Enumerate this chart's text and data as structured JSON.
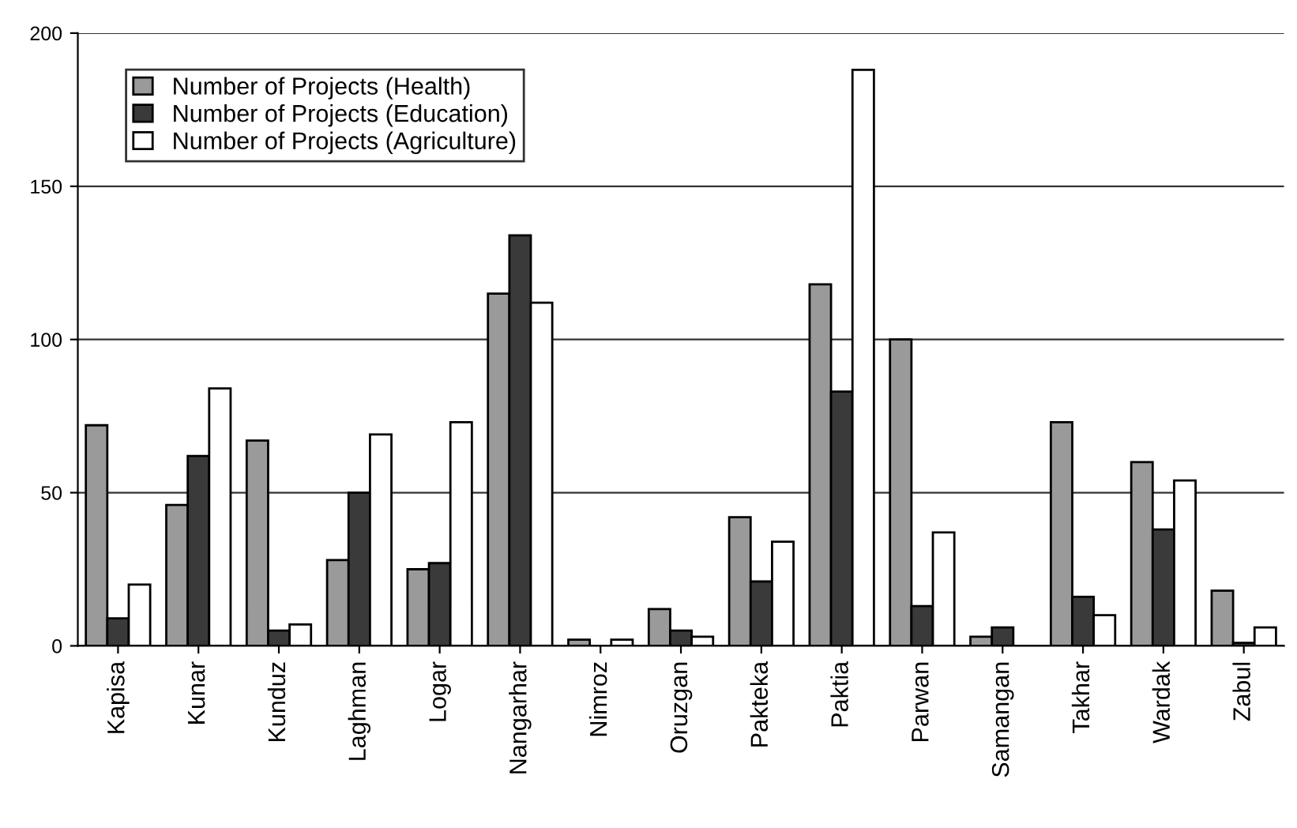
{
  "chart_data": {
    "type": "bar",
    "categories": [
      "Kapisa",
      "Kunar",
      "Kunduz",
      "Laghman",
      "Logar",
      "Nangarhar",
      "Nimroz",
      "Oruzgan",
      "Pakteka",
      "Paktia",
      "Parwan",
      "Samangan",
      "Takhar",
      "Wardak",
      "Zabul"
    ],
    "series": [
      {
        "name": "Number of Projects (Health)",
        "color": "#9a9a9a",
        "values": [
          72,
          46,
          67,
          28,
          25,
          115,
          2,
          12,
          42,
          118,
          100,
          3,
          73,
          60,
          18
        ]
      },
      {
        "name": "Number of Projects (Education)",
        "color": "#3a3a3a",
        "values": [
          9,
          62,
          5,
          50,
          27,
          134,
          null,
          5,
          21,
          83,
          13,
          6,
          16,
          38,
          1
        ]
      },
      {
        "name": "Number of Projects (Agriculture)",
        "color": "#ffffff",
        "values": [
          20,
          84,
          7,
          69,
          73,
          112,
          2,
          3,
          34,
          188,
          37,
          null,
          10,
          54,
          6
        ]
      }
    ],
    "ylim": [
      0,
      200
    ],
    "yticks": [
      0,
      50,
      100,
      150,
      200
    ],
    "grid": "y",
    "legend": "top left"
  }
}
